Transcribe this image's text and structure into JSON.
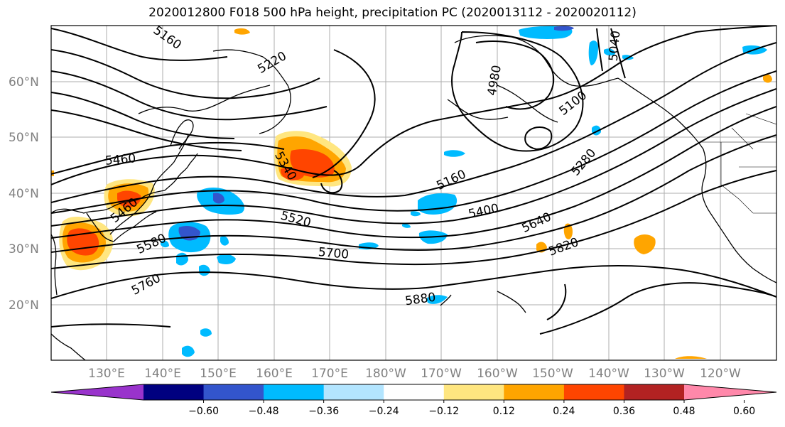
{
  "title": "2020012800 F018 500 hPa height, precipitation PC (2020013112 - 2020020112)",
  "lat_labels": [
    "60°N",
    "50°N",
    "40°N",
    "30°N",
    "20°N"
  ],
  "lon_labels": [
    "130°E",
    "140°E",
    "150°E",
    "160°E",
    "170°E",
    "180°W",
    "170°W",
    "160°W",
    "150°W",
    "140°W",
    "130°W",
    "120°W"
  ],
  "contour_labels": {
    "c5160a": "5160",
    "c5220": "5220",
    "c4980": "4980",
    "c5040": "5040",
    "c5100": "5100",
    "c5460a": "5460",
    "c5460b": "5460",
    "c5340": "5340",
    "c5160b": "5160",
    "c5280": "5280",
    "c5400": "5400",
    "c5520": "5520",
    "c5580": "5580",
    "c5640": "5640",
    "c5700": "5700",
    "c5760": "5760",
    "c5820": "5820",
    "c5880": "5880"
  },
  "colorbar": {
    "ticks": [
      "−0.60",
      "−0.48",
      "−0.36",
      "−0.24",
      "−0.12",
      "0.12",
      "0.24",
      "0.36",
      "0.48",
      "0.60"
    ],
    "colors": [
      "#9933cc",
      "#000080",
      "#3355cc",
      "#00bbff",
      "#b3e5ff",
      "#ffffff",
      "#ffe680",
      "#ffa500",
      "#ff4500",
      "#b22222",
      "#ff88aa"
    ]
  }
}
